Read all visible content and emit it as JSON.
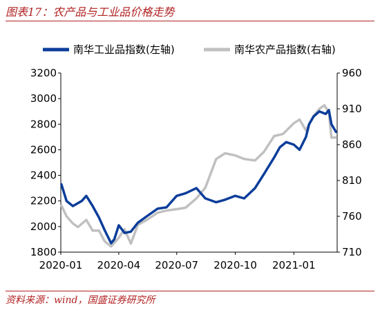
{
  "figure": {
    "title": "图表17：农产品与工业品价格走势",
    "source": "资料来源：wind，国盛证券研究所"
  },
  "chart_data": {
    "type": "line",
    "title": "",
    "xlabel": "",
    "ylabel_left": "",
    "ylabel_right": "",
    "x_ticks": [
      "2020-01",
      "2020-04",
      "2020-07",
      "2020-10",
      "2021-01"
    ],
    "x_range": [
      "2020-01-01",
      "2021-03-10"
    ],
    "y_left": {
      "ticks": [
        1800,
        2000,
        2200,
        2400,
        2600,
        2800,
        3000,
        3200
      ],
      "range": [
        1800,
        3200
      ]
    },
    "y_right": {
      "ticks": [
        710,
        760,
        810,
        860,
        910,
        960
      ],
      "range": [
        710,
        960
      ]
    },
    "grid": false,
    "legend_position": "top",
    "series": [
      {
        "name": "南华工业品指数(左轴)",
        "axis": "left",
        "color": "#0b3d9a",
        "x": [
          "2020-01-02",
          "2020-01-10",
          "2020-01-20",
          "2020-02-03",
          "2020-02-10",
          "2020-02-20",
          "2020-03-01",
          "2020-03-10",
          "2020-03-20",
          "2020-03-25",
          "2020-04-01",
          "2020-04-10",
          "2020-04-20",
          "2020-05-01",
          "2020-05-15",
          "2020-06-01",
          "2020-06-15",
          "2020-07-01",
          "2020-07-15",
          "2020-08-01",
          "2020-08-15",
          "2020-09-01",
          "2020-09-15",
          "2020-10-01",
          "2020-10-15",
          "2020-11-01",
          "2020-11-15",
          "2020-12-01",
          "2020-12-10",
          "2020-12-20",
          "2021-01-01",
          "2021-01-10",
          "2021-01-20",
          "2021-01-25",
          "2021-02-01",
          "2021-02-10",
          "2021-02-20",
          "2021-02-25",
          "2021-03-01",
          "2021-03-08"
        ],
        "y": [
          2330,
          2200,
          2160,
          2200,
          2240,
          2160,
          2070,
          1970,
          1870,
          1900,
          2010,
          1950,
          1960,
          2030,
          2080,
          2140,
          2150,
          2240,
          2260,
          2300,
          2220,
          2190,
          2210,
          2240,
          2220,
          2300,
          2410,
          2540,
          2620,
          2660,
          2640,
          2600,
          2700,
          2800,
          2860,
          2900,
          2880,
          2910,
          2800,
          2740
        ]
      },
      {
        "name": "南华农产品指数(右轴)",
        "axis": "right",
        "color": "#c0c0c0",
        "x": [
          "2020-01-02",
          "2020-01-10",
          "2020-01-20",
          "2020-01-28",
          "2020-02-10",
          "2020-02-20",
          "2020-03-01",
          "2020-03-10",
          "2020-03-20",
          "2020-04-01",
          "2020-04-10",
          "2020-04-20",
          "2020-05-01",
          "2020-05-15",
          "2020-06-01",
          "2020-06-15",
          "2020-07-01",
          "2020-07-15",
          "2020-08-01",
          "2020-08-15",
          "2020-09-01",
          "2020-09-15",
          "2020-10-01",
          "2020-10-15",
          "2020-11-01",
          "2020-11-15",
          "2020-12-01",
          "2020-12-15",
          "2021-01-01",
          "2021-01-10",
          "2021-01-20",
          "2021-02-01",
          "2021-02-10",
          "2021-02-18",
          "2021-02-25",
          "2021-03-01",
          "2021-03-08"
        ],
        "y": [
          775,
          760,
          750,
          745,
          755,
          740,
          740,
          725,
          718,
          730,
          742,
          722,
          748,
          755,
          765,
          768,
          770,
          772,
          785,
          800,
          840,
          848,
          845,
          840,
          838,
          850,
          872,
          875,
          890,
          895,
          880,
          900,
          910,
          915,
          905,
          870,
          870
        ]
      }
    ]
  }
}
